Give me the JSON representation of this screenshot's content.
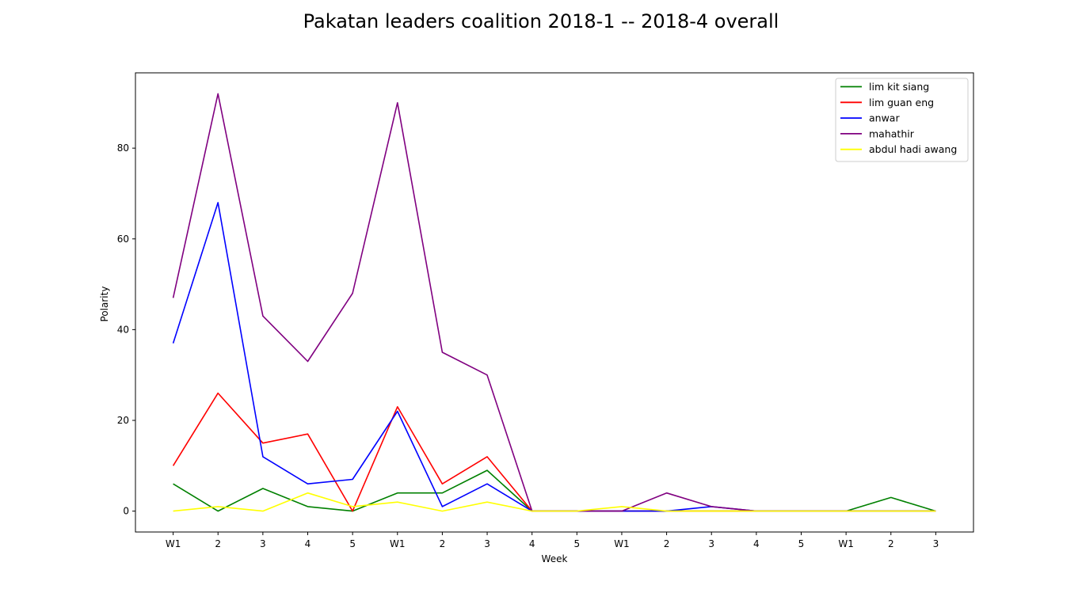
{
  "chart_data": {
    "type": "line",
    "title": "Pakatan leaders coalition 2018-1 -- 2018-4 overall",
    "xlabel": "Week",
    "ylabel": "Polarity",
    "categories": [
      "W1",
      "2",
      "3",
      "4",
      "5",
      "W1",
      "2",
      "3",
      "4",
      "5",
      "W1",
      "2",
      "3",
      "4",
      "5",
      "W1",
      "2",
      "3"
    ],
    "ylim": [
      -4.6,
      96.6
    ],
    "yticks": [
      0,
      20,
      40,
      60,
      80
    ],
    "grid": false,
    "legend_position": "top-right",
    "series": [
      {
        "name": "lim kit siang",
        "color": "#008000",
        "values": [
          6,
          0,
          5,
          1,
          0,
          4,
          4,
          9,
          0,
          0,
          0,
          0,
          0,
          0,
          0,
          0,
          3,
          0
        ]
      },
      {
        "name": "lim guan eng",
        "color": "#ff0000",
        "values": [
          10,
          26,
          15,
          17,
          0,
          23,
          6,
          12,
          0,
          0,
          0,
          0,
          0,
          0,
          0,
          0,
          0,
          0
        ]
      },
      {
        "name": "anwar",
        "color": "#0000ff",
        "values": [
          37,
          68,
          12,
          6,
          7,
          22,
          1,
          6,
          0,
          0,
          0,
          0,
          1,
          0,
          0,
          0,
          0,
          0
        ]
      },
      {
        "name": "mahathir",
        "color": "#800080",
        "values": [
          47,
          92,
          43,
          33,
          48,
          90,
          35,
          30,
          0,
          0,
          0,
          4,
          1,
          0,
          0,
          0,
          0,
          0
        ]
      },
      {
        "name": "abdul hadi awang",
        "color": "#ffff00",
        "values": [
          0,
          1,
          0,
          4,
          1,
          2,
          0,
          2,
          0,
          0,
          1,
          0,
          0,
          0,
          0,
          0,
          0,
          0
        ]
      }
    ]
  }
}
